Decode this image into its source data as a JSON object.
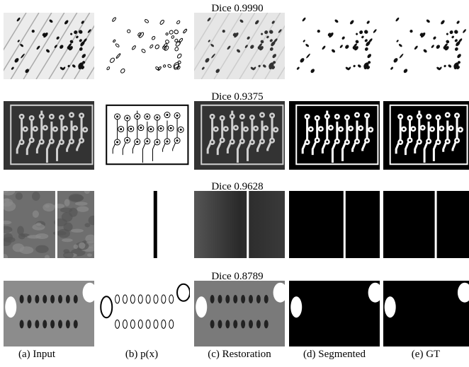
{
  "rows": [
    {
      "dice": "Dice 0.9990"
    },
    {
      "dice": "Dice 0.9375"
    },
    {
      "dice": "Dice 0.9628"
    },
    {
      "dice": "Dice 0.8789"
    }
  ],
  "captions": [
    "(a) Input",
    "(b) p(x)",
    "(c) Restoration",
    "(d) Segmented",
    "(e) GT"
  ]
}
